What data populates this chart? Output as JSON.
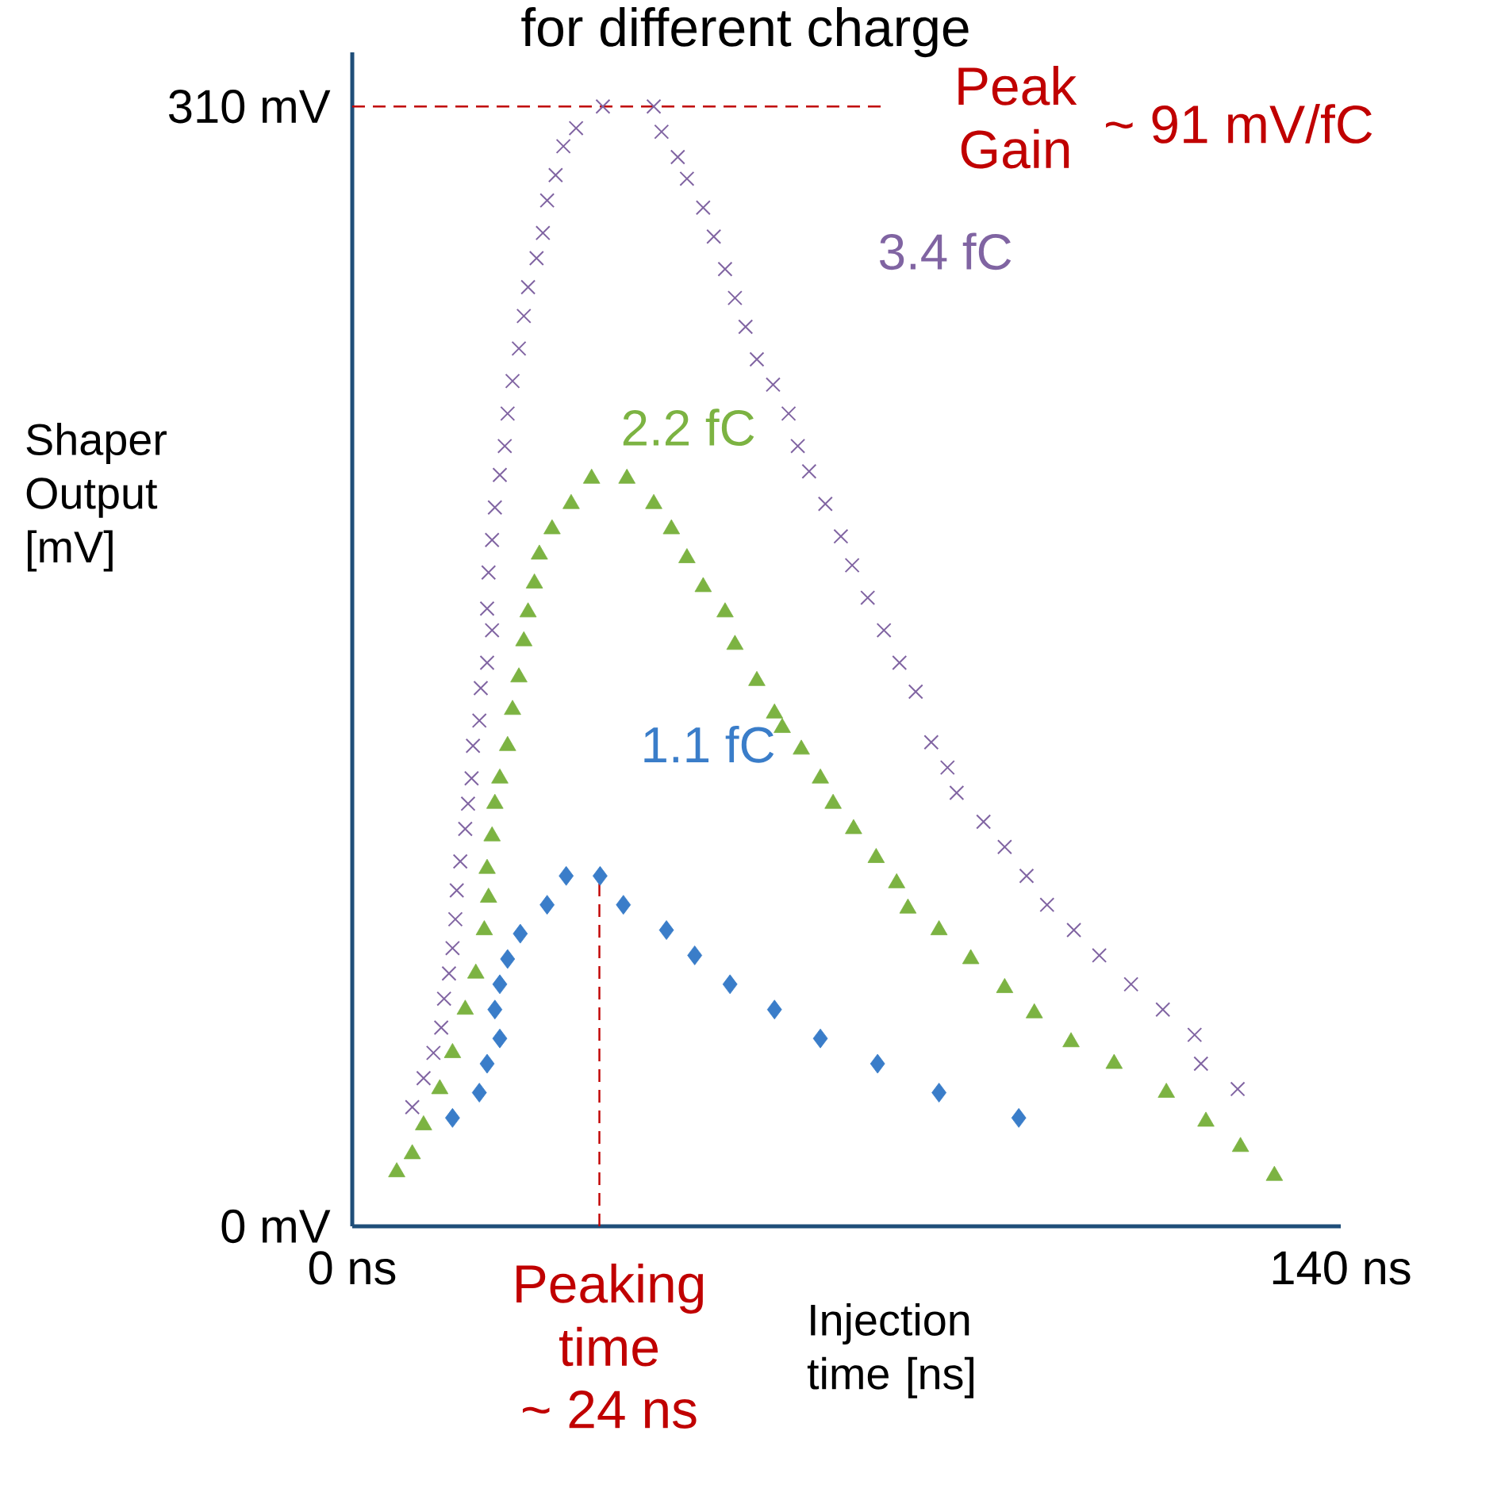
{
  "chart_data": {
    "type": "scatter",
    "title": "for different charge",
    "xlabel": "Injection time [ns]",
    "ylabel": "Shaper Output [mV]",
    "xlim": [
      0,
      140
    ],
    "ylim": [
      0,
      325
    ],
    "xticks": [
      {
        "value": 0,
        "label": "0 ns"
      },
      {
        "value": 140,
        "label": "140 ns"
      }
    ],
    "yticks": [
      {
        "value": 0,
        "label": "0 mV"
      },
      {
        "value": 310,
        "label": "310 mV"
      }
    ],
    "grid": false,
    "ref_lines": [
      {
        "axis": "y",
        "value": 310,
        "color": "#c00000",
        "line_style": "dashed"
      },
      {
        "axis": "x",
        "value": 35,
        "color": "#c00000",
        "line_style": "dashed"
      }
    ],
    "annotations": [
      "Peak Gain",
      "~ 91 mV/fC",
      "Peaking time",
      "~ 24 ns"
    ],
    "series": [
      {
        "name": "3.4 fC",
        "color": "#8064a2",
        "marker": "cross",
        "x": [
          8.5,
          10.1,
          11.5,
          12.6,
          13.0,
          13.7,
          14.2,
          14.6,
          14.8,
          15.3,
          16.0,
          16.4,
          16.9,
          17.1,
          18.0,
          18.2,
          19.1,
          19.8,
          19.1,
          19.3,
          19.8,
          20.2,
          20.9,
          21.6,
          22.0,
          22.7,
          23.6,
          24.3,
          24.9,
          26.1,
          27.0,
          27.6,
          28.8,
          29.9,
          31.7,
          35.5,
          42.7,
          43.8,
          46.1,
          47.4,
          49.7,
          51.2,
          52.8,
          54.2,
          55.7,
          57.3,
          59.6,
          61.8,
          63.1,
          64.7,
          67.0,
          69.2,
          70.8,
          73.0,
          75.3,
          77.5,
          79.8,
          82.0,
          84.3,
          85.6,
          89.4,
          92.4,
          95.5,
          98.4,
          102.2,
          105.8,
          110.3,
          114.8,
          119.3,
          120.2,
          125.4
        ],
        "values": [
          33,
          41,
          48,
          55,
          63,
          70,
          77,
          85,
          93,
          101,
          110,
          117,
          124,
          133,
          140,
          149,
          156,
          165,
          171,
          181,
          190,
          199,
          208,
          216,
          225,
          234,
          243,
          252,
          260,
          268,
          275,
          284,
          291,
          299,
          304,
          310,
          310,
          303,
          296,
          290,
          282,
          274,
          265,
          257,
          249,
          240,
          233,
          225,
          216,
          209,
          200,
          191,
          183,
          174,
          165,
          156,
          148,
          134,
          127,
          120,
          112,
          105,
          97,
          89,
          82,
          75,
          67,
          60,
          53,
          45,
          38
        ]
      },
      {
        "name": "2.2 fC",
        "color": "#7cb342",
        "marker": "triangle",
        "x": [
          6.3,
          8.5,
          10.1,
          12.4,
          14.2,
          16.0,
          17.5,
          18.7,
          19.3,
          19.1,
          19.8,
          20.2,
          20.9,
          22.0,
          22.7,
          23.6,
          24.3,
          24.9,
          25.8,
          26.5,
          28.3,
          31.0,
          33.9,
          38.9,
          42.7,
          45.2,
          47.4,
          49.7,
          52.8,
          54.2,
          57.3,
          59.8,
          60.9,
          63.6,
          66.3,
          68.1,
          71.0,
          74.2,
          77.1,
          78.7,
          83.1,
          87.6,
          92.4,
          96.6,
          101.8,
          107.9,
          115.3,
          120.9,
          125.8,
          130.6
        ],
        "values": [
          15,
          20,
          28,
          38,
          48,
          60,
          70,
          82,
          91,
          99,
          108,
          117,
          124,
          133,
          143,
          152,
          162,
          170,
          178,
          186,
          193,
          200,
          207,
          207,
          200,
          193,
          185,
          177,
          170,
          161,
          151,
          142,
          138,
          132,
          124,
          117,
          110,
          102,
          95,
          88,
          82,
          74,
          66,
          59,
          51,
          45,
          37,
          29,
          22,
          14
        ]
      },
      {
        "name": "1.1 fC",
        "color": "#3a7dc9",
        "marker": "diamond",
        "x": [
          14.2,
          18.0,
          19.1,
          20.9,
          20.2,
          20.9,
          22.0,
          23.8,
          27.6,
          30.3,
          35.1,
          38.4,
          44.5,
          48.5,
          53.5,
          59.8,
          66.3,
          74.4,
          83.1,
          94.4
        ],
        "values": [
          30,
          37,
          45,
          52,
          60,
          67,
          74,
          81,
          89,
          97,
          97,
          89,
          82,
          75,
          67,
          60,
          52,
          45,
          37,
          30
        ]
      }
    ]
  }
}
